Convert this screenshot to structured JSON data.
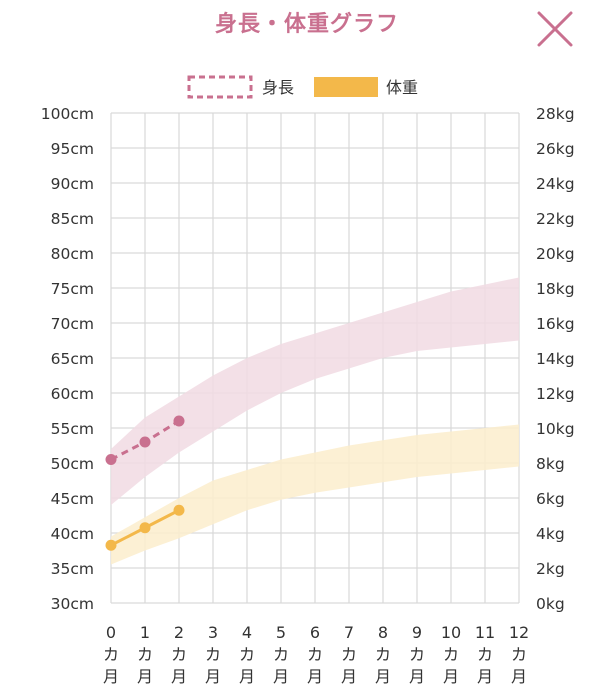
{
  "header": {
    "title": "身長・体重グラフ",
    "close_icon": "close-x-icon"
  },
  "colors": {
    "title": "#c9708f",
    "height_line": "#c9708f",
    "height_band": "#f1dbe3",
    "weight_line": "#f3b84a",
    "weight_band": "#fbedcc",
    "grid": "#d9d9d9"
  },
  "chart_data": {
    "type": "line",
    "legend": {
      "position": "top-center",
      "height_label": "身長",
      "weight_label": "体重"
    },
    "x": [
      0,
      1,
      2,
      3,
      4,
      5,
      6,
      7,
      8,
      9,
      10,
      11,
      12
    ],
    "x_tick_labels": [
      "0カ月",
      "1カ月",
      "2カ月",
      "3カ月",
      "4カ月",
      "5カ月",
      "6カ月",
      "7カ月",
      "8カ月",
      "9カ月",
      "10カ月",
      "11カ月",
      "12カ月"
    ],
    "xlim": [
      0,
      12
    ],
    "y_left": {
      "ticks": [
        "30cm",
        "35cm",
        "40cm",
        "45cm",
        "50cm",
        "55cm",
        "60cm",
        "65cm",
        "70cm",
        "75cm",
        "80cm",
        "85cm",
        "90cm",
        "95cm",
        "100cm"
      ],
      "lim": [
        30,
        100
      ]
    },
    "y_right": {
      "ticks": [
        "0kg",
        "2kg",
        "4kg",
        "6kg",
        "8kg",
        "10kg",
        "12kg",
        "14kg",
        "16kg",
        "18kg",
        "20kg",
        "22kg",
        "24kg",
        "26kg",
        "28kg"
      ],
      "lim": [
        0,
        28
      ]
    },
    "grid": true,
    "series": [
      {
        "name": "身長",
        "axis": "left",
        "style": "dashed",
        "x": [
          0,
          1,
          2
        ],
        "values": [
          50.5,
          53.0,
          56.0
        ]
      },
      {
        "name": "体重",
        "axis": "right",
        "style": "solid",
        "x": [
          0,
          1,
          2
        ],
        "values": [
          3.3,
          4.3,
          5.3
        ]
      }
    ],
    "bands": [
      {
        "series": "身長",
        "axis": "left",
        "x": [
          0,
          1,
          2,
          3,
          4,
          5,
          6,
          7,
          8,
          9,
          10,
          11,
          12
        ],
        "lower": [
          44.0,
          48.0,
          51.5,
          54.5,
          57.5,
          60.0,
          62.0,
          63.5,
          65.0,
          66.0,
          66.5,
          67.0,
          67.5
        ],
        "upper": [
          52.0,
          56.5,
          59.5,
          62.5,
          65.0,
          67.0,
          68.5,
          70.0,
          71.5,
          73.0,
          74.5,
          75.5,
          76.5
        ]
      },
      {
        "series": "体重",
        "axis": "right",
        "x": [
          0,
          1,
          2,
          3,
          4,
          5,
          6,
          7,
          8,
          9,
          10,
          11,
          12
        ],
        "lower": [
          2.2,
          3.0,
          3.7,
          4.5,
          5.3,
          5.9,
          6.3,
          6.6,
          6.9,
          7.2,
          7.4,
          7.6,
          7.8
        ],
        "upper": [
          3.8,
          4.9,
          6.0,
          7.0,
          7.6,
          8.2,
          8.6,
          9.0,
          9.3,
          9.6,
          9.8,
          10.0,
          10.2
        ]
      }
    ]
  }
}
